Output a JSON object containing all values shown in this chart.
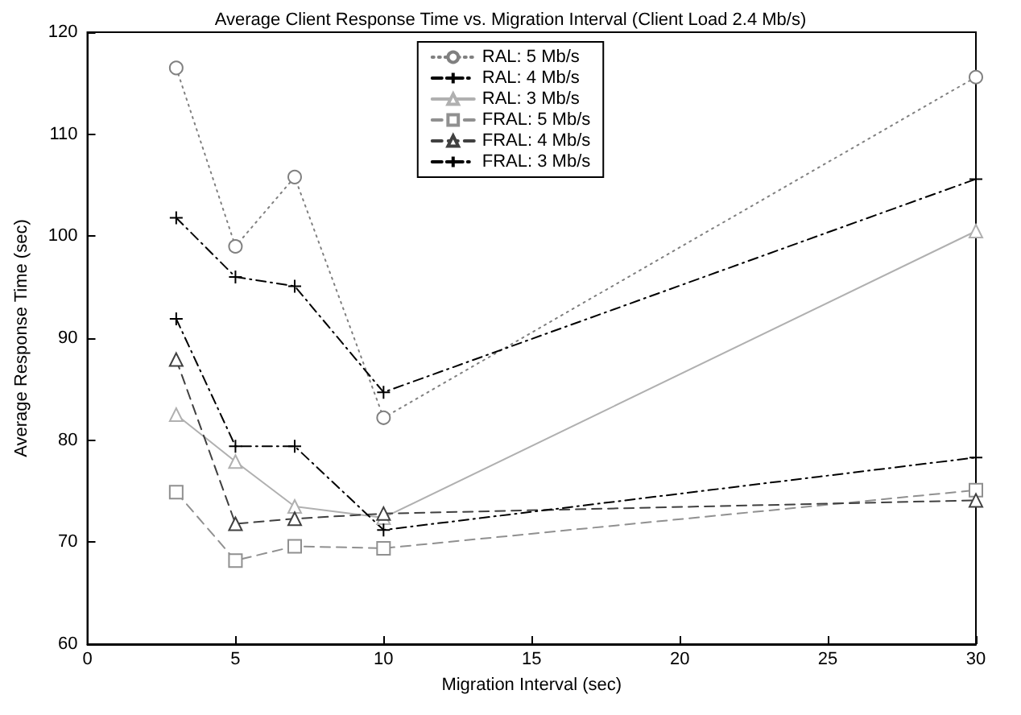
{
  "chart_data": {
    "type": "line",
    "title": "Average Client Response Time vs. Migration Interval (Client Load 2.4 Mb/s)",
    "xlabel": "Migration Interval (sec)",
    "ylabel": "Average Response Time (sec)",
    "x": [
      3,
      5,
      7,
      10,
      30
    ],
    "series": [
      {
        "name": "RAL: 5 Mb/s",
        "color": "#808080",
        "marker": "circle",
        "line_style": "dotted",
        "values": [
          116.5,
          99.0,
          105.8,
          82.2,
          115.6
        ]
      },
      {
        "name": "RAL: 4 Mb/s",
        "color": "#000000",
        "marker": "cross",
        "line_style": "dashdot",
        "values": [
          101.8,
          96.0,
          95.1,
          84.7,
          105.6
        ]
      },
      {
        "name": "RAL: 3 Mb/s",
        "color": "#b0b0b0",
        "marker": "triangle",
        "line_style": "solid",
        "values": [
          82.5,
          77.9,
          73.5,
          72.4,
          100.5
        ]
      },
      {
        "name": "FRAL: 5 Mb/s",
        "color": "#909090",
        "marker": "square",
        "line_style": "dashed",
        "values": [
          74.9,
          68.2,
          69.6,
          69.4,
          75.1
        ]
      },
      {
        "name": "FRAL: 4 Mb/s",
        "color": "#404040",
        "marker": "triangle",
        "line_style": "dashed",
        "values": [
          87.9,
          71.8,
          72.3,
          72.8,
          74.1
        ]
      },
      {
        "name": "FRAL: 3 Mb/s",
        "color": "#000000",
        "marker": "cross",
        "line_style": "dashdot",
        "values": [
          91.9,
          79.4,
          79.4,
          71.2,
          78.3
        ]
      }
    ],
    "xlim": [
      0,
      30
    ],
    "xticks": [
      0,
      5,
      10,
      15,
      20,
      25,
      30
    ],
    "ylim": [
      60,
      120
    ],
    "yticks": [
      60,
      70,
      80,
      90,
      100,
      110,
      120
    ],
    "grid": false,
    "legend": "top"
  }
}
